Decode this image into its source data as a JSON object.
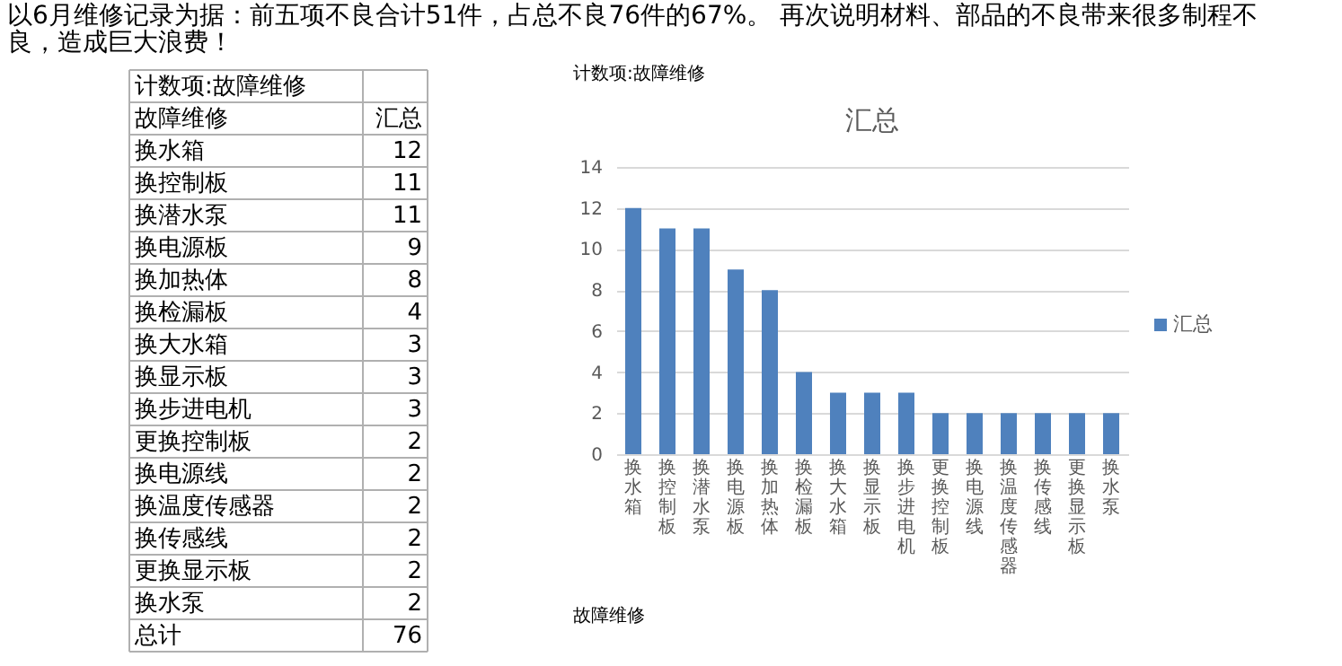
{
  "chart_data": {
    "type": "bar",
    "title": "汇总",
    "categories": [
      "换水箱",
      "换控制板",
      "换潜水泵",
      "换电源板",
      "换加热体",
      "换检漏板",
      "换大水箱",
      "换显示板",
      "换步进电机",
      "更换控制板",
      "换电源线",
      "换温度传感器",
      "换传感线",
      "更换显示板",
      "换水泵"
    ],
    "series": [
      {
        "name": "汇总",
        "color": "#4f81bd",
        "values": [
          12,
          11,
          11,
          9,
          8,
          4,
          3,
          3,
          3,
          2,
          2,
          2,
          2,
          2,
          2
        ]
      }
    ],
    "ylim": [
      0,
      14
    ],
    "yticks": [
      0,
      2,
      4,
      6,
      8,
      10,
      12,
      14
    ],
    "grid": "y",
    "legend": "right",
    "annotations": [
      "以6月维修记录为据：前五项不良合计51件，占总不良76件的67%。  再次说明材料、部品的不良带来很多制程不",
      "良，造成巨大浪费！",
      "计数项:故障维修",
      "故障维修",
      "总计",
      "76",
      "12",
      "11",
      "11",
      "9",
      "8",
      "4",
      "3",
      "3",
      "3",
      "2",
      "2",
      "2",
      "2",
      "2",
      "2"
    ]
  }
}
